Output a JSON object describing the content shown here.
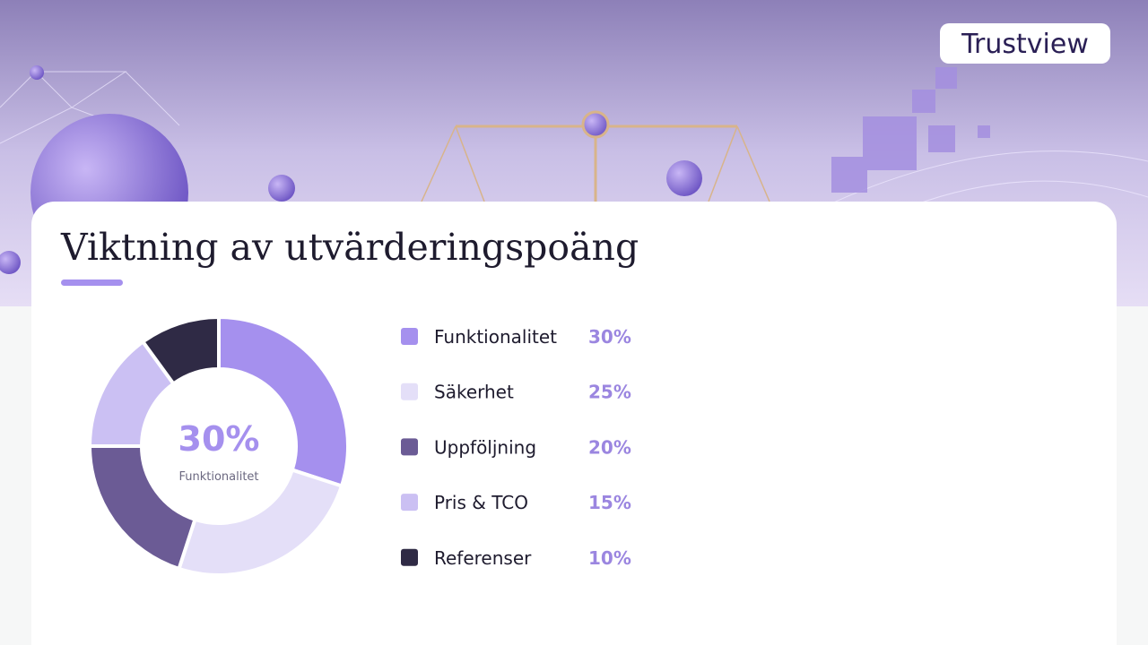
{
  "logo": "Trustview",
  "chart_data": {
    "type": "pie",
    "title": "Viktning av utvärderingspoäng",
    "categories": [
      "Funktionalitet",
      "Säkerhet",
      "Uppföljning",
      "Pris & TCO",
      "Referenser"
    ],
    "values": [
      30,
      25,
      20,
      15,
      10
    ],
    "value_labels": [
      "30%",
      "25%",
      "20%",
      "15%",
      "10%"
    ],
    "colors": [
      "#a590ee",
      "#e4dff8",
      "#6b5b95",
      "#cbc0f3",
      "#2f2a45"
    ],
    "donut": true
  }
}
